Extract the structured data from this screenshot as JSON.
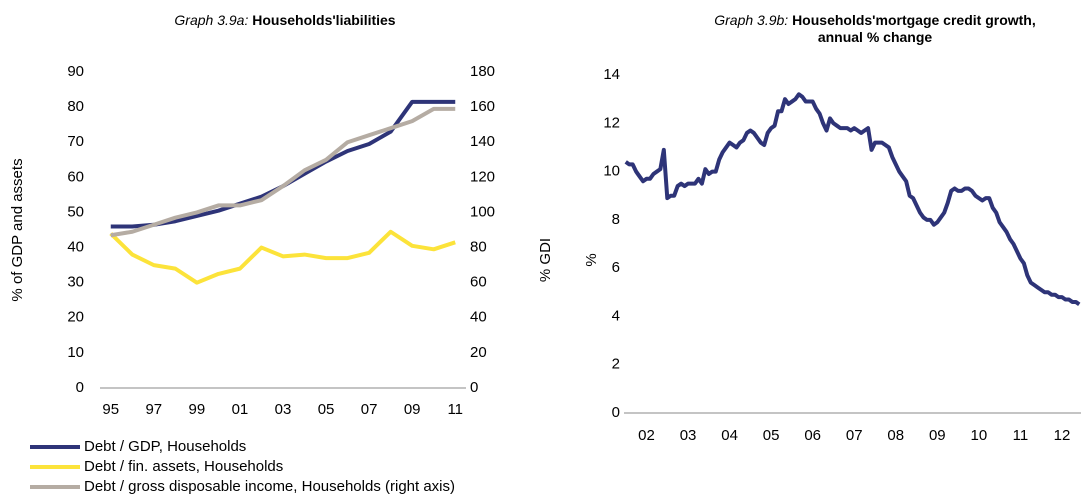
{
  "chart_data": [
    {
      "type": "line",
      "title_prefix": "Graph 3.9a:",
      "title": "Households'liabilities",
      "y_label": "% of GDP and assets",
      "y2_label": "% GDI",
      "categories": [
        "95",
        null,
        "97",
        null,
        "99",
        null,
        "01",
        null,
        "03",
        null,
        "05",
        null,
        "07",
        null,
        "09",
        null,
        "11"
      ],
      "ylim": [
        0,
        90
      ],
      "yticks": [
        0,
        10,
        20,
        30,
        40,
        50,
        60,
        70,
        80,
        90
      ],
      "y2lim": [
        0,
        180
      ],
      "y2ticks": [
        0,
        20,
        40,
        60,
        80,
        100,
        120,
        140,
        160,
        180
      ],
      "legend": "bottom",
      "series": [
        {
          "name": "Debt / GDP, Households",
          "color": "#2e3478",
          "values": [
            46,
            46,
            46.5,
            47.5,
            49,
            50.5,
            52.5,
            54.5,
            57.5,
            61,
            64.5,
            67.5,
            69.5,
            73,
            81.5,
            81.5,
            81.5
          ]
        },
        {
          "name": "Debt / fin. assets, Households",
          "color": "#fce33a",
          "values": [
            44,
            38,
            35,
            34,
            30,
            32.5,
            34,
            40,
            37.5,
            38,
            37,
            37,
            38.5,
            44.5,
            40.5,
            39.5,
            41.5
          ]
        },
        {
          "name": "Debt / gross disposable income, Households (right axis)",
          "color": "#b5aca3",
          "axis": "y2",
          "values": [
            87,
            89,
            93,
            97,
            100,
            104,
            104,
            107,
            115,
            124,
            130,
            140,
            144,
            148,
            152,
            159,
            159
          ]
        }
      ]
    },
    {
      "type": "line",
      "title_prefix": "Graph 3.9b:",
      "title": "Households'mortgage credit growth, annual % change",
      "y_label": "%",
      "categories": [
        null,
        null,
        null,
        null,
        null,
        null,
        "02",
        null,
        null,
        null,
        null,
        null,
        null,
        null,
        null,
        null,
        null,
        null,
        "03",
        null,
        null,
        null,
        null,
        null,
        null,
        null,
        null,
        null,
        null,
        null,
        "04",
        null,
        null,
        null,
        null,
        null,
        null,
        null,
        null,
        null,
        null,
        null,
        "05",
        null,
        null,
        null,
        null,
        null,
        null,
        null,
        null,
        null,
        null,
        null,
        "06",
        null,
        null,
        null,
        null,
        null,
        null,
        null,
        null,
        null,
        null,
        null,
        "07",
        null,
        null,
        null,
        null,
        null,
        null,
        null,
        null,
        null,
        null,
        null,
        "08",
        null,
        null,
        null,
        null,
        null,
        null,
        null,
        null,
        null,
        null,
        null,
        "09",
        null,
        null,
        null,
        null,
        null,
        null,
        null,
        null,
        null,
        null,
        null,
        "10",
        null,
        null,
        null,
        null,
        null,
        null,
        null,
        null,
        null,
        null,
        null,
        "11",
        null,
        null,
        null,
        null,
        null,
        null,
        null,
        null,
        null,
        null,
        null,
        "12",
        null,
        null,
        null,
        null,
        null
      ],
      "ylim": [
        0,
        14
      ],
      "yticks": [
        0,
        2,
        4,
        6,
        8,
        10,
        12,
        14
      ],
      "series": [
        {
          "color": "#2e3478",
          "values": [
            10.4,
            10.3,
            10.3,
            10.0,
            9.8,
            9.6,
            9.7,
            9.7,
            9.9,
            10.0,
            10.1,
            10.9,
            8.9,
            9.0,
            9.0,
            9.4,
            9.5,
            9.4,
            9.5,
            9.5,
            9.5,
            9.7,
            9.5,
            10.1,
            9.9,
            10.0,
            10.0,
            10.5,
            10.8,
            11.0,
            11.2,
            11.1,
            11.0,
            11.2,
            11.3,
            11.6,
            11.7,
            11.6,
            11.4,
            11.2,
            11.1,
            11.6,
            11.8,
            11.9,
            12.5,
            12.5,
            13.0,
            12.8,
            12.9,
            13.0,
            13.2,
            13.1,
            12.9,
            12.9,
            12.9,
            12.6,
            12.4,
            12.0,
            11.7,
            12.2,
            12.0,
            11.9,
            11.8,
            11.8,
            11.8,
            11.7,
            11.8,
            11.7,
            11.6,
            11.7,
            11.8,
            10.9,
            11.2,
            11.2,
            11.2,
            11.1,
            11.0,
            10.6,
            10.3,
            10.0,
            9.8,
            9.6,
            9.0,
            8.9,
            8.6,
            8.3,
            8.1,
            8.0,
            8.0,
            7.8,
            7.9,
            8.1,
            8.3,
            8.7,
            9.2,
            9.3,
            9.2,
            9.2,
            9.3,
            9.3,
            9.2,
            9.0,
            8.9,
            8.8,
            8.9,
            8.9,
            8.5,
            8.3,
            7.9,
            7.7,
            7.5,
            7.2,
            7.0,
            6.7,
            6.4,
            6.2,
            5.7,
            5.4,
            5.3,
            5.2,
            5.1,
            5.0,
            5.0,
            4.9,
            4.9,
            4.8,
            4.8,
            4.7,
            4.7,
            4.6,
            4.6,
            4.5
          ]
        }
      ]
    }
  ]
}
